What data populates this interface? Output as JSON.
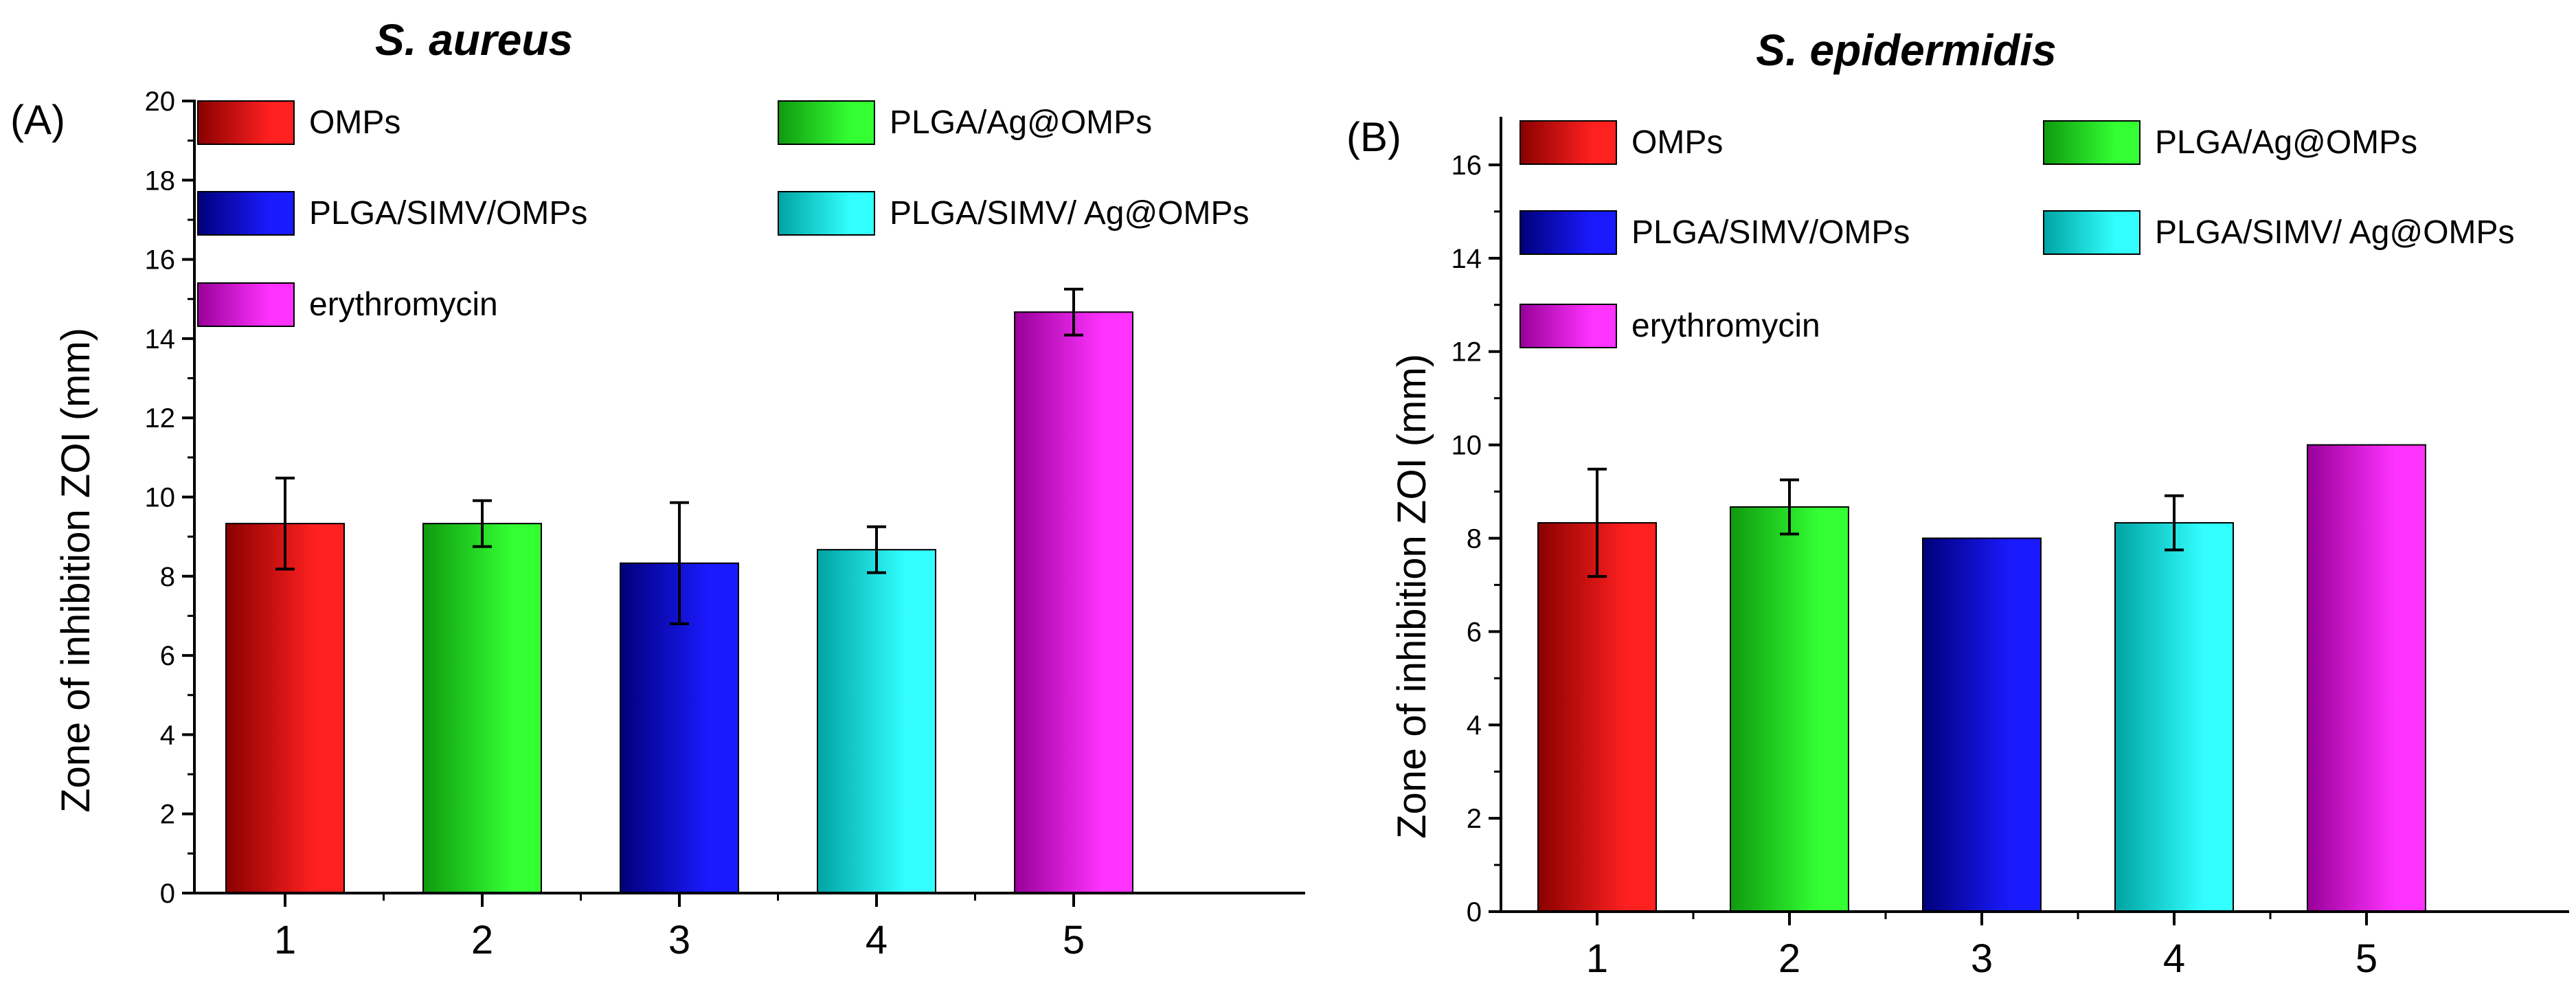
{
  "chart_data": [
    {
      "type": "bar",
      "panel_label": "(A)",
      "title": "S.  aureus",
      "xlabel": "",
      "ylabel": "Zone of inhibition ZOI (mm)",
      "ylim": [
        0,
        20
      ],
      "yticks": [
        "0",
        "2",
        "4",
        "6",
        "8",
        "10",
        "12",
        "14",
        "16",
        "18",
        "20"
      ],
      "categories": [
        "1",
        "2",
        "3",
        "4",
        "5"
      ],
      "values": [
        9.33,
        9.33,
        8.33,
        8.67,
        14.67
      ],
      "errors": [
        1.15,
        0.58,
        1.53,
        0.58,
        0.58
      ],
      "legend": [
        "OMPs",
        "PLGA/Ag@OMPs",
        "PLGA/SIMV/OMPs",
        "PLGA/SIMV/ Ag@OMPs",
        "erythromycin"
      ]
    },
    {
      "type": "bar",
      "panel_label": "(B)",
      "title": "S. epidermidis",
      "xlabel": "",
      "ylabel": "Zone of inhibition ZOI (mm)",
      "ylim": [
        0,
        17
      ],
      "yticks": [
        "0",
        "2",
        "4",
        "6",
        "8",
        "10",
        "12",
        "14",
        "16"
      ],
      "categories": [
        "1",
        "2",
        "3",
        "4",
        "5"
      ],
      "values": [
        8.33,
        8.67,
        8.0,
        8.33,
        10.0
      ],
      "errors": [
        1.15,
        0.58,
        0,
        0.58,
        0
      ],
      "legend": [
        "OMPs",
        "PLGA/Ag@OMPs",
        "PLGA/SIMV/OMPs",
        "PLGA/SIMV/ Ag@OMPs",
        "erythromycin"
      ]
    }
  ],
  "colors": {
    "series": [
      {
        "dark": "#8a0000",
        "light": "#ff2020"
      },
      {
        "dark": "#0f9a0f",
        "light": "#33ff33"
      },
      {
        "dark": "#00007a",
        "light": "#1a1aff"
      },
      {
        "dark": "#00a3a3",
        "light": "#33ffff"
      },
      {
        "dark": "#990099",
        "light": "#ff33ff"
      }
    ]
  }
}
